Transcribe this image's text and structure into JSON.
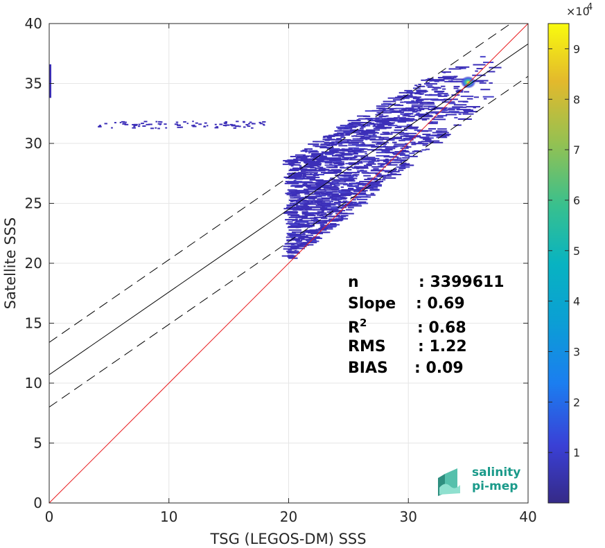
{
  "chart_data": {
    "type": "heatmap",
    "title": "",
    "xlabel": "TSG (LEGOS-DM) SSS",
    "ylabel": "Satellite SSS",
    "xlim": [
      0,
      40
    ],
    "ylim": [
      0,
      40
    ],
    "x_ticks": [
      "0",
      "10",
      "20",
      "30",
      "40"
    ],
    "y_ticks": [
      "0",
      "5",
      "10",
      "15",
      "20",
      "25",
      "30",
      "35",
      "40"
    ],
    "grid": true,
    "colorbar": {
      "range": [
        0,
        9.5
      ],
      "ticks": [
        "1",
        "2",
        "3",
        "4",
        "5",
        "6",
        "7",
        "8",
        "9"
      ],
      "multiplier": "×10",
      "multiplier_exp": "4",
      "colormap": "parula"
    },
    "identity_line": {
      "slope": 1,
      "intercept": 0,
      "color": "#e8191c"
    },
    "fit_line": {
      "slope": 0.69,
      "intercept": 10.7,
      "color": "#000000"
    },
    "fit_bounds": [
      {
        "slope": 0.69,
        "intercept": 13.4,
        "style": "dashed"
      },
      {
        "slope": 0.69,
        "intercept": 8.0,
        "style": "dashed"
      }
    ],
    "density_peak": {
      "x": 35.0,
      "y": 35.1
    },
    "stats": [
      {
        "label": "n",
        "sup": "",
        "value": ": 3399611"
      },
      {
        "label": "Slope",
        "sup": "",
        "value": ": 0.69"
      },
      {
        "label": "R",
        "sup": "2",
        "value": ": 0.68"
      },
      {
        "label": "RMS",
        "sup": "",
        "value": ": 1.22"
      },
      {
        "label": "BIAS",
        "sup": "",
        "value": ": 0.09"
      }
    ]
  },
  "logo": {
    "line1": "salinity",
    "line2": "pi-mep"
  }
}
